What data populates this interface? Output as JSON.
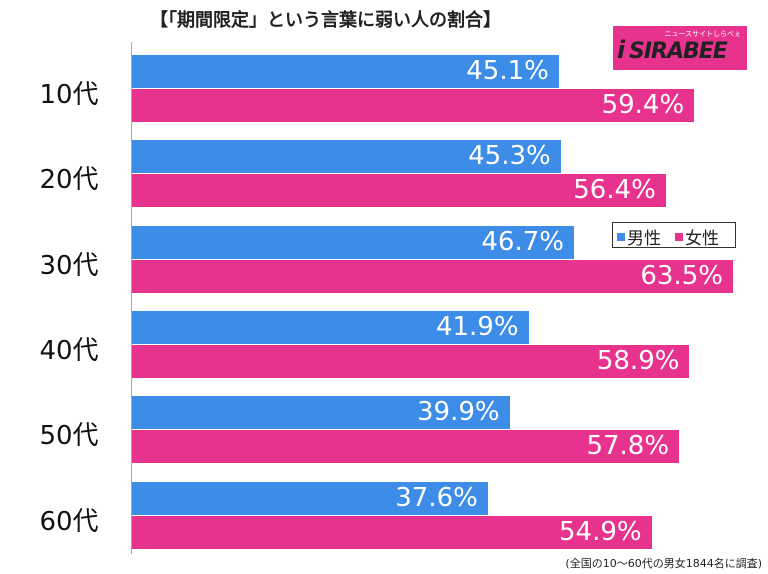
{
  "title": "【「期間限定」という言葉に弱い人の割合】",
  "logo": {
    "small_text": "ニュースサイトしらべぇ",
    "main_text": "SIRABEE",
    "letter": "i",
    "color": "#e8338e"
  },
  "footnote": "(全国の10〜60代の男女1844名に調査)",
  "chart_data": {
    "type": "bar",
    "orientation": "horizontal",
    "categories": [
      "10代",
      "20代",
      "30代",
      "40代",
      "50代",
      "60代"
    ],
    "series": [
      {
        "name": "男性",
        "color": "#3d8ce8",
        "values": [
          45.1,
          45.3,
          46.7,
          41.9,
          39.9,
          37.6
        ],
        "labels": [
          "45.1%",
          "45.3%",
          "46.7%",
          "41.9%",
          "39.9%",
          "37.6%"
        ]
      },
      {
        "name": "女性",
        "color": "#e8338e",
        "values": [
          59.4,
          56.4,
          63.5,
          58.9,
          57.8,
          54.9
        ],
        "labels": [
          "59.4%",
          "56.4%",
          "63.5%",
          "58.9%",
          "57.8%",
          "54.9%"
        ]
      }
    ],
    "xlim": [
      0,
      63.5
    ],
    "grid": false,
    "legend_position": "right"
  }
}
